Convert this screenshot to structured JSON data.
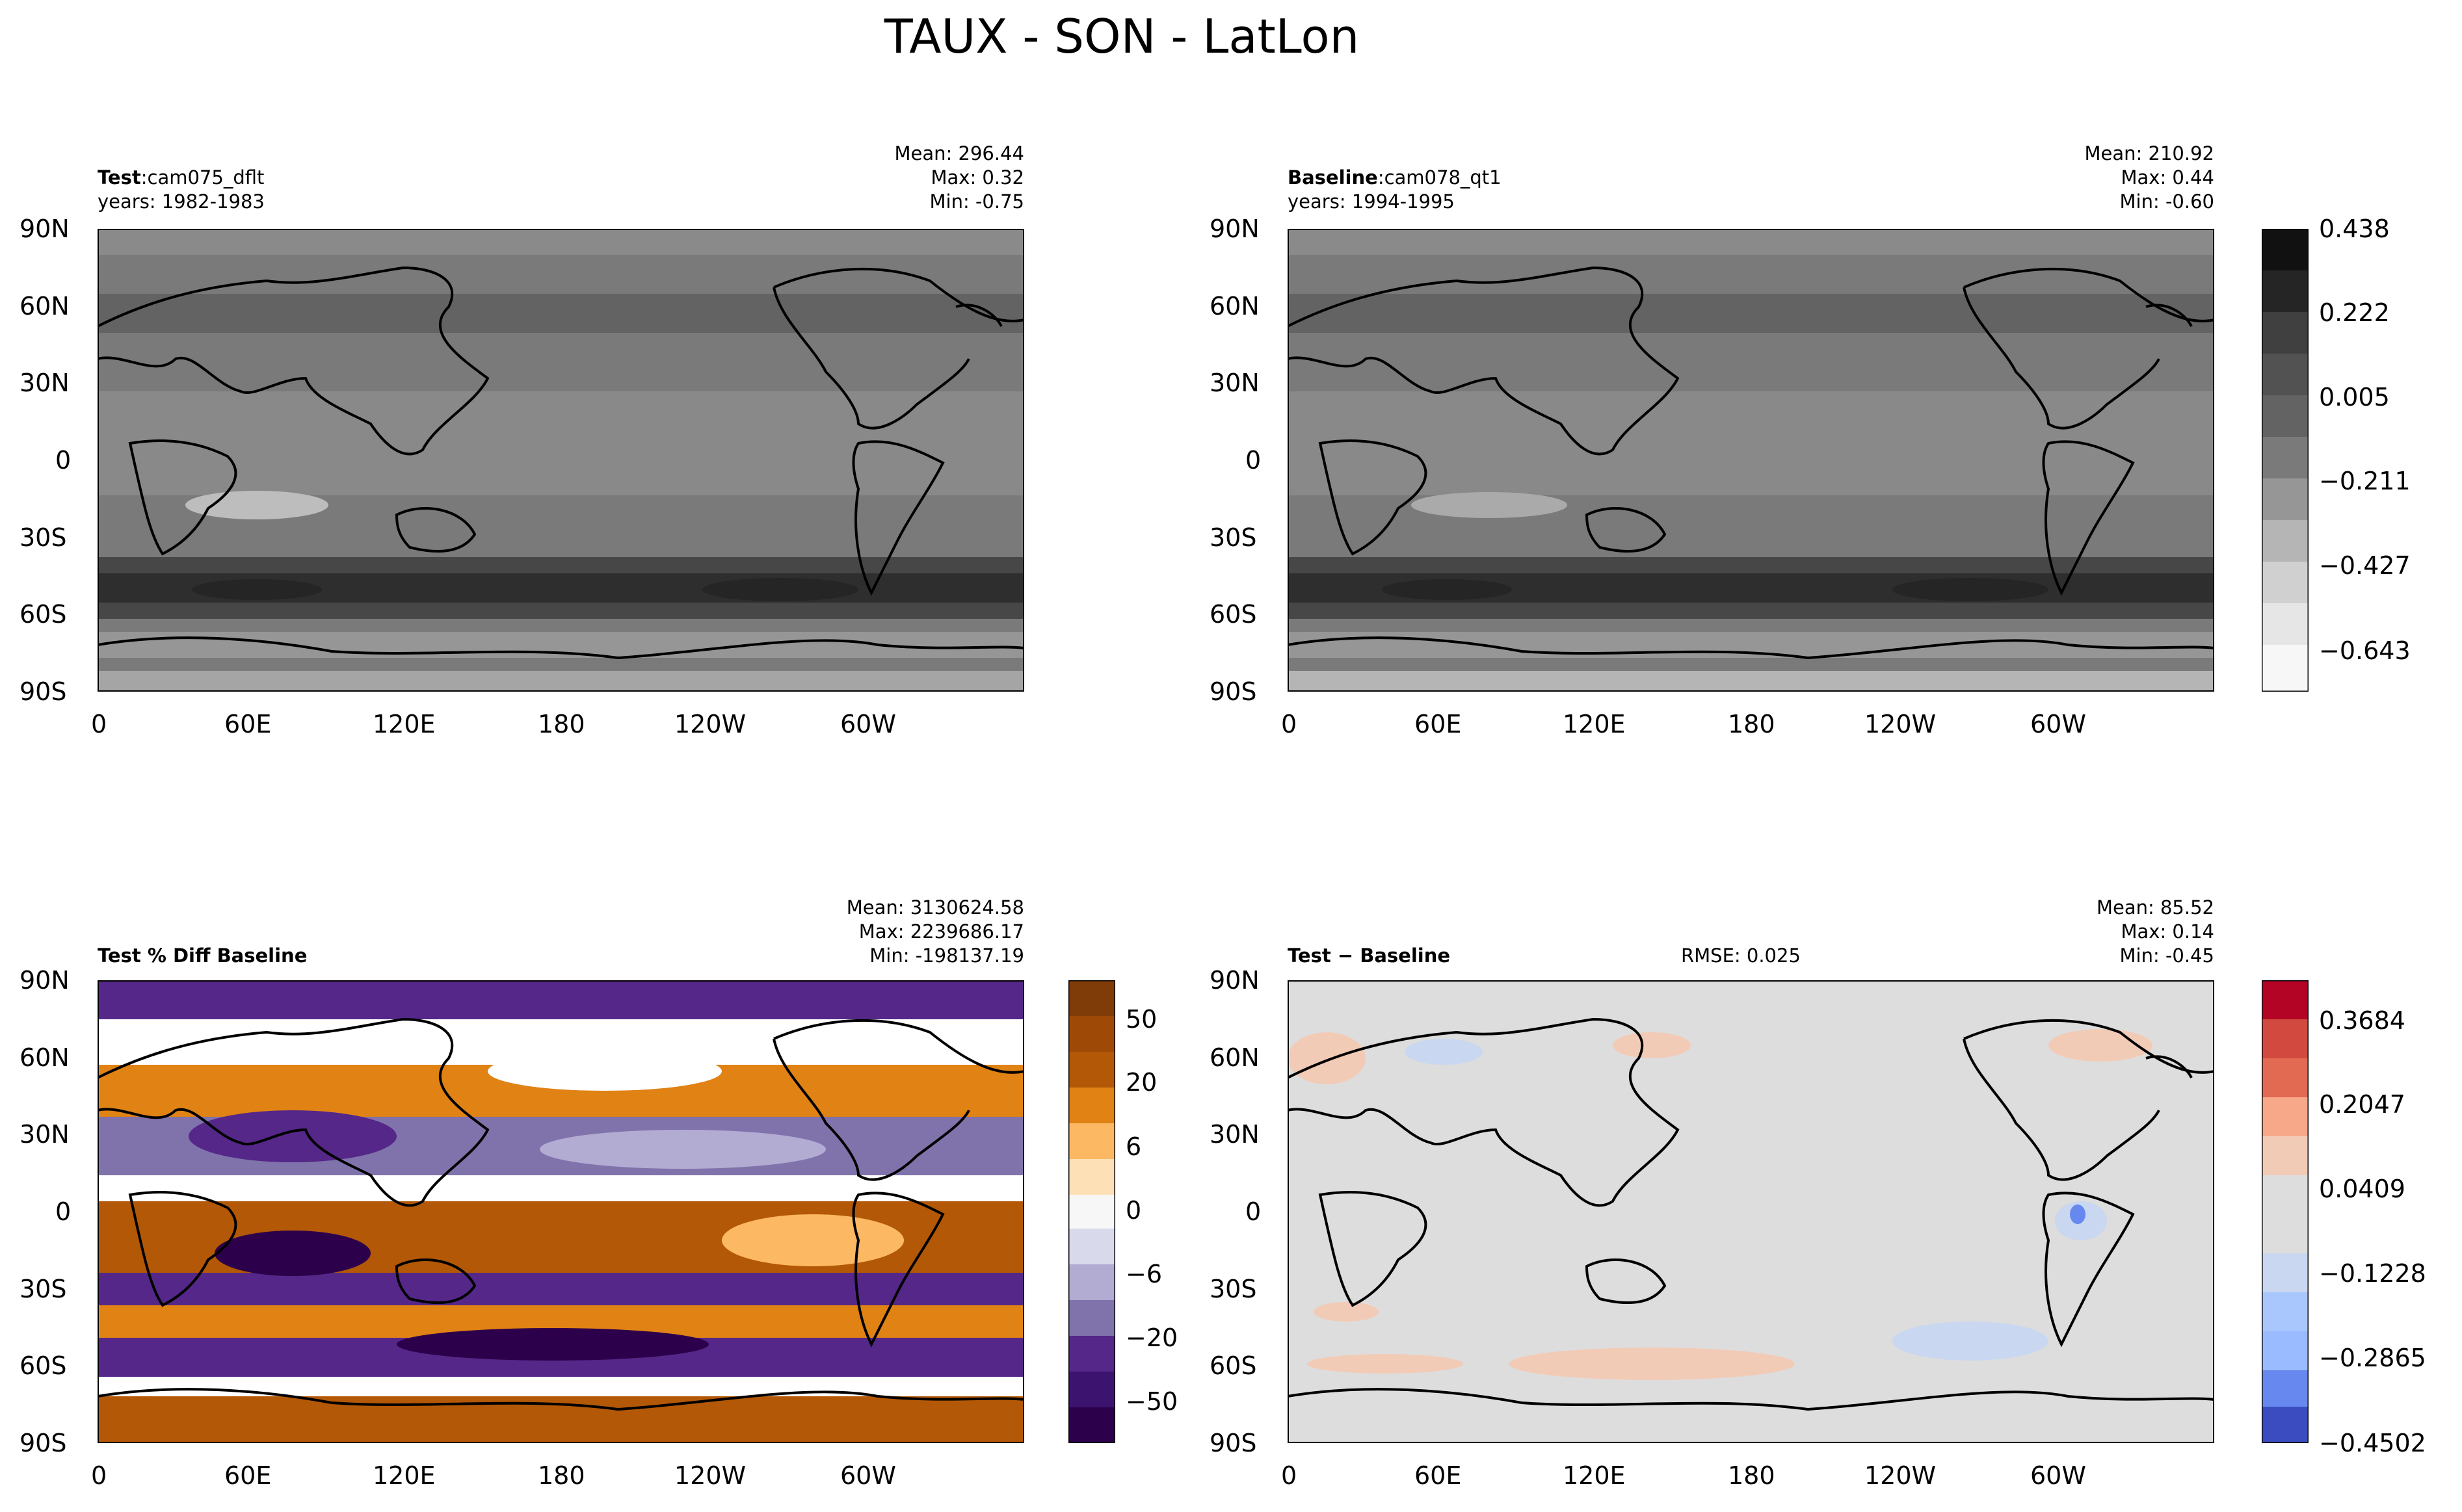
{
  "figure_title": "TAUX - SON - LatLon",
  "colors": {
    "gray_ramp": [
      "#ffffff",
      "#f0f0f0",
      "#d9d9d9",
      "#bdbdbd",
      "#969696",
      "#7a7a7a",
      "#636363",
      "#525252",
      "#404040",
      "#252525",
      "#111111"
    ],
    "land_outline": "#000000",
    "pct_diff_ramp": [
      "#2d004b",
      "#542788",
      "#8073ac",
      "#b2abd2",
      "#d8daeb",
      "#f7f7f7",
      "#fee0b6",
      "#fdb863",
      "#e08214",
      "#b35806",
      "#7f3b08"
    ],
    "diff_ramp": [
      "#3b4cc0",
      "#6788ee",
      "#9abbff",
      "#c9d7f0",
      "#dddddd",
      "#f2cbb7",
      "#f7a889",
      "#e26952",
      "#b40426"
    ]
  },
  "chart_data": [
    {
      "type": "heatmap",
      "panel": "test",
      "label_bold": "Test",
      "label_text": ":cam075_dflt",
      "years": "years: 1982-1983",
      "stats": {
        "mean": "Mean: 296.44",
        "max": "Max:  0.32",
        "min": "Min: -0.75"
      },
      "x_ticks": [
        "0",
        "60E",
        "120E",
        "180",
        "120W",
        "60W"
      ],
      "y_ticks": [
        "90N",
        "60N",
        "30N",
        "0",
        "30S",
        "60S",
        "90S"
      ],
      "xlim": [
        0,
        360
      ],
      "ylim": [
        -90,
        90
      ]
    },
    {
      "type": "heatmap",
      "panel": "baseline",
      "label_bold": "Baseline",
      "label_text": ":cam078_qt1",
      "years": "years: 1994-1995",
      "stats": {
        "mean": "Mean: 210.92",
        "max": "Max:  0.44",
        "min": "Min: -0.60"
      },
      "x_ticks": [
        "0",
        "60E",
        "120E",
        "180",
        "120W",
        "60W"
      ],
      "y_ticks": [
        "90N",
        "60N",
        "30N",
        "0",
        "30S",
        "60S",
        "90S"
      ],
      "xlim": [
        0,
        360
      ],
      "ylim": [
        -90,
        90
      ],
      "colorbar": {
        "ticks": [
          "0.438",
          "0.222",
          "0.005",
          "−0.211",
          "−0.427",
          "−0.643"
        ]
      }
    },
    {
      "type": "heatmap",
      "panel": "percent_diff",
      "label_bold": "Test % Diff Baseline",
      "stats": {
        "mean": "Mean: 3130624.58",
        "max": "Max: 2239686.17",
        "min": "Min: -198137.19"
      },
      "x_ticks": [
        "0",
        "60E",
        "120E",
        "180",
        "120W",
        "60W"
      ],
      "y_ticks": [
        "90N",
        "60N",
        "30N",
        "0",
        "30S",
        "60S",
        "90S"
      ],
      "xlim": [
        0,
        360
      ],
      "ylim": [
        -90,
        90
      ],
      "colorbar": {
        "ticks": [
          "50",
          "20",
          "6",
          "0",
          "−6",
          "−20",
          "−50"
        ]
      }
    },
    {
      "type": "heatmap",
      "panel": "difference",
      "label_bold": "Test − Baseline",
      "rmse": "RMSE: 0.025",
      "stats": {
        "mean": "Mean: 85.52",
        "max": "Max:  0.14",
        "min": "Min: -0.45"
      },
      "x_ticks": [
        "0",
        "60E",
        "120E",
        "180",
        "120W",
        "60W"
      ],
      "y_ticks": [
        "90N",
        "60N",
        "30N",
        "0",
        "30S",
        "60S",
        "90S"
      ],
      "xlim": [
        0,
        360
      ],
      "ylim": [
        -90,
        90
      ],
      "colorbar": {
        "ticks": [
          "0.3684",
          "0.2047",
          "0.0409",
          "−0.1228",
          "−0.2865",
          "−0.4502"
        ]
      }
    }
  ]
}
